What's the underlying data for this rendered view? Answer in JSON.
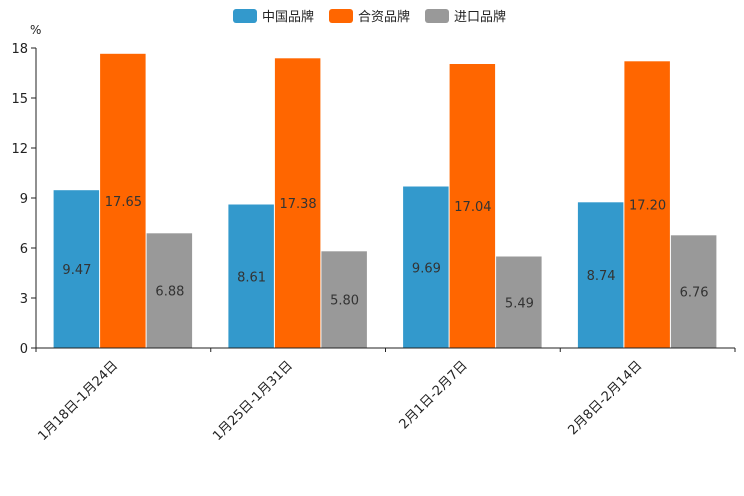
{
  "chart_data": {
    "type": "bar",
    "unit": "%",
    "categories": [
      "1月18日-1月24日",
      "1月25日-1月31日",
      "2月1日-2月7日",
      "2月8日-2月14日"
    ],
    "series": [
      {
        "name": "中国品牌",
        "color": "#3399cc",
        "values": [
          9.47,
          8.61,
          9.69,
          8.74
        ]
      },
      {
        "name": "合资品牌",
        "color": "#ff6600",
        "values": [
          17.65,
          17.38,
          17.04,
          17.2
        ]
      },
      {
        "name": "进口品牌",
        "color": "#999999",
        "values": [
          6.88,
          5.8,
          5.49,
          6.76
        ]
      }
    ],
    "value_labels": [
      [
        "9.47",
        "8.61",
        "9.69",
        "8.74"
      ],
      [
        "17.65",
        "17.38",
        "17.04",
        "17.20"
      ],
      [
        "6.88",
        "5.80",
        "5.49",
        "6.76"
      ]
    ],
    "yticks": [
      0,
      3,
      6,
      9,
      12,
      15,
      18
    ],
    "ylim": [
      0,
      18
    ],
    "legend_position": "top-center",
    "grid": false
  }
}
